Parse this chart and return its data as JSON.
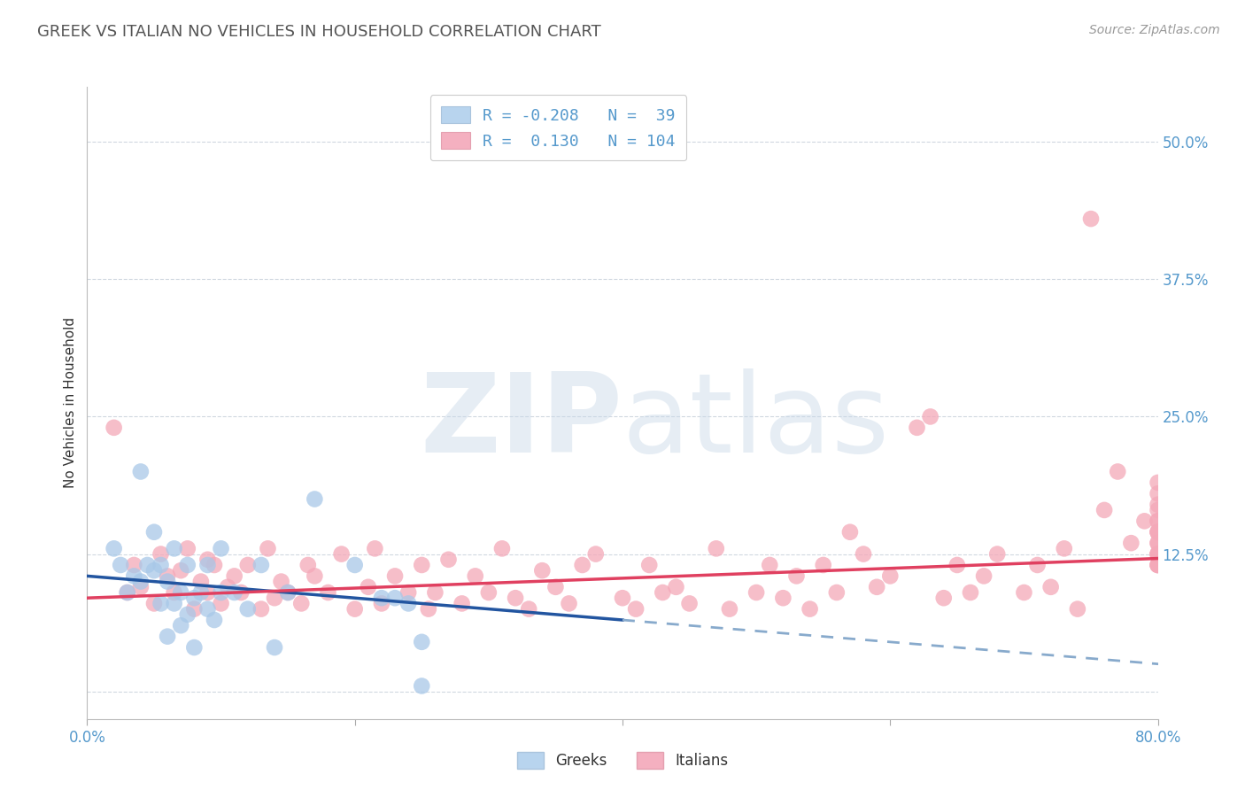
{
  "title": "GREEK VS ITALIAN NO VEHICLES IN HOUSEHOLD CORRELATION CHART",
  "source": "Source: ZipAtlas.com",
  "ylabel": "No Vehicles in Household",
  "xlim": [
    0.0,
    0.8
  ],
  "ylim": [
    -0.025,
    0.55
  ],
  "watermark_zip": "ZIP",
  "watermark_atlas": "atlas",
  "legend_blue_R": -0.208,
  "legend_blue_N": 39,
  "legend_pink_R": 0.13,
  "legend_pink_N": 104,
  "blue_color": "#a8c8e8",
  "pink_color": "#f4a8b8",
  "blue_line_color": "#2255a0",
  "pink_line_color": "#e04060",
  "blue_dashed_color": "#88aacc",
  "background_color": "#ffffff",
  "grid_color": "#d0d8e0",
  "title_color": "#555555",
  "tick_color": "#5599cc",
  "greeks_x": [
    0.02,
    0.025,
    0.03,
    0.035,
    0.04,
    0.04,
    0.045,
    0.05,
    0.05,
    0.055,
    0.055,
    0.06,
    0.06,
    0.065,
    0.065,
    0.07,
    0.07,
    0.075,
    0.075,
    0.08,
    0.08,
    0.085,
    0.09,
    0.09,
    0.095,
    0.1,
    0.1,
    0.11,
    0.12,
    0.13,
    0.14,
    0.15,
    0.17,
    0.2,
    0.22,
    0.23,
    0.24,
    0.25,
    0.25
  ],
  "greeks_y": [
    0.13,
    0.115,
    0.09,
    0.105,
    0.2,
    0.1,
    0.115,
    0.11,
    0.145,
    0.08,
    0.115,
    0.05,
    0.1,
    0.08,
    0.13,
    0.06,
    0.09,
    0.07,
    0.115,
    0.04,
    0.085,
    0.09,
    0.075,
    0.115,
    0.065,
    0.09,
    0.13,
    0.09,
    0.075,
    0.115,
    0.04,
    0.09,
    0.175,
    0.115,
    0.085,
    0.085,
    0.08,
    0.005,
    0.045
  ],
  "italians_x": [
    0.02,
    0.03,
    0.035,
    0.04,
    0.05,
    0.055,
    0.06,
    0.065,
    0.07,
    0.075,
    0.08,
    0.085,
    0.09,
    0.09,
    0.095,
    0.1,
    0.105,
    0.11,
    0.115,
    0.12,
    0.13,
    0.135,
    0.14,
    0.145,
    0.15,
    0.16,
    0.165,
    0.17,
    0.18,
    0.19,
    0.2,
    0.21,
    0.215,
    0.22,
    0.23,
    0.24,
    0.25,
    0.255,
    0.26,
    0.27,
    0.28,
    0.29,
    0.3,
    0.31,
    0.32,
    0.33,
    0.34,
    0.35,
    0.36,
    0.37,
    0.38,
    0.4,
    0.41,
    0.42,
    0.43,
    0.44,
    0.45,
    0.47,
    0.48,
    0.5,
    0.51,
    0.52,
    0.53,
    0.54,
    0.55,
    0.56,
    0.57,
    0.58,
    0.59,
    0.6,
    0.62,
    0.63,
    0.64,
    0.65,
    0.66,
    0.67,
    0.68,
    0.7,
    0.71,
    0.72,
    0.73,
    0.74,
    0.75,
    0.76,
    0.77,
    0.78,
    0.79,
    0.8,
    0.8,
    0.8,
    0.8,
    0.8,
    0.8,
    0.8,
    0.8,
    0.8,
    0.8,
    0.8,
    0.8,
    0.8,
    0.8,
    0.8,
    0.8,
    0.8
  ],
  "italians_y": [
    0.24,
    0.09,
    0.115,
    0.095,
    0.08,
    0.125,
    0.105,
    0.09,
    0.11,
    0.13,
    0.075,
    0.1,
    0.09,
    0.12,
    0.115,
    0.08,
    0.095,
    0.105,
    0.09,
    0.115,
    0.075,
    0.13,
    0.085,
    0.1,
    0.09,
    0.08,
    0.115,
    0.105,
    0.09,
    0.125,
    0.075,
    0.095,
    0.13,
    0.08,
    0.105,
    0.09,
    0.115,
    0.075,
    0.09,
    0.12,
    0.08,
    0.105,
    0.09,
    0.13,
    0.085,
    0.075,
    0.11,
    0.095,
    0.08,
    0.115,
    0.125,
    0.085,
    0.075,
    0.115,
    0.09,
    0.095,
    0.08,
    0.13,
    0.075,
    0.09,
    0.115,
    0.085,
    0.105,
    0.075,
    0.115,
    0.09,
    0.145,
    0.125,
    0.095,
    0.105,
    0.24,
    0.25,
    0.085,
    0.115,
    0.09,
    0.105,
    0.125,
    0.09,
    0.115,
    0.095,
    0.13,
    0.075,
    0.43,
    0.165,
    0.2,
    0.135,
    0.155,
    0.125,
    0.145,
    0.115,
    0.17,
    0.19,
    0.135,
    0.155,
    0.125,
    0.145,
    0.115,
    0.165,
    0.18,
    0.135,
    0.155,
    0.125,
    0.145,
    0.115
  ]
}
